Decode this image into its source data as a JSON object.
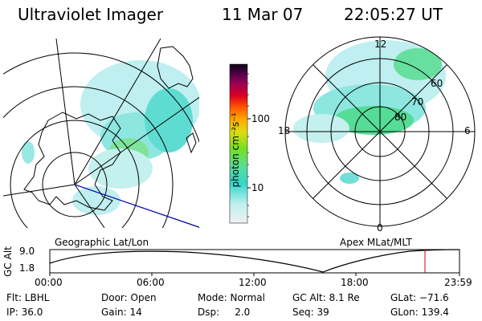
{
  "header": {
    "title": "Ultraviolet Imager",
    "date": "11 Mar 07",
    "time": "22:05:27 UT"
  },
  "colorbar": {
    "label": "photon cm⁻²s⁻¹",
    "ticks": [
      "100",
      "10"
    ]
  },
  "left_map": {
    "caption": "Geographic Lat/Lon"
  },
  "right_map": {
    "caption": "Apex  MLat/MLT",
    "hours": {
      "top": "12",
      "left": "18",
      "right": "6",
      "bottom": "0"
    },
    "lat_labels": [
      "60",
      "70",
      "80"
    ]
  },
  "altitude_plot": {
    "ylabel": "GC Alt",
    "yticks": [
      "9.0",
      "1.8"
    ],
    "xticks": [
      "00:00",
      "06:00",
      "12:00",
      "18:00",
      "23:59"
    ],
    "marker_color": "#cc0000"
  },
  "info": {
    "flt": "Flt: LBHL",
    "ip": "IP: 36.0",
    "door": "Door: Open",
    "gain": "Gain: 14",
    "mode": "Mode: Normal",
    "dsp": "Dsp:     2.0",
    "gcalt": "GC Alt: 8.1 Re",
    "seq": "Seq: 39",
    "glat": "GLat: −71.6",
    "glon": "GLon: 139.4"
  }
}
